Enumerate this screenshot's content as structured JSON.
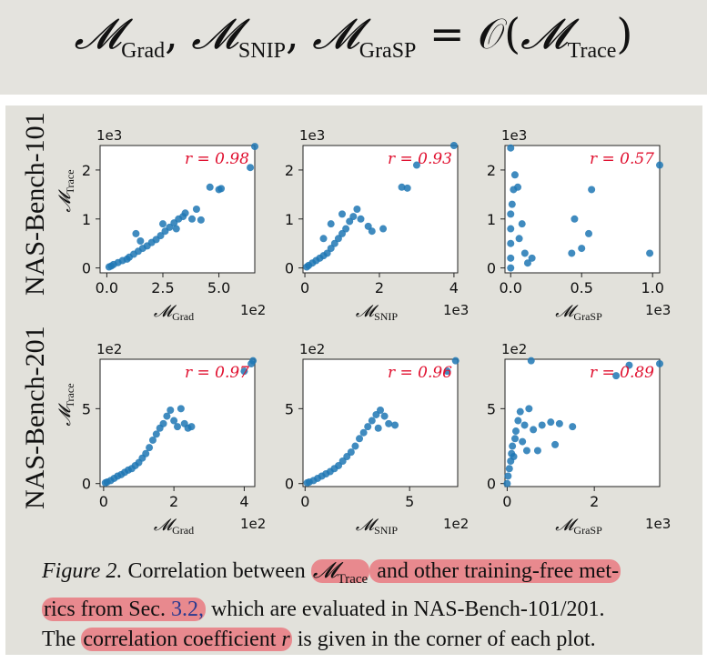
{
  "equation": {
    "lhs": [
      {
        "sym": "𝓜",
        "sub": "Grad"
      },
      {
        "sym": "𝓜",
        "sub": "SNIP"
      },
      {
        "sym": "𝓜",
        "sub": "GraSP"
      }
    ],
    "sep": ",",
    "rhs_prefix": "= 𝒪(",
    "rhs_sym": "𝓜",
    "rhs_sub": "Trace",
    "rhs_suffix": ")"
  },
  "row_labels": [
    "NAS-Bench-101",
    "NAS-Bench-201"
  ],
  "caption": {
    "fig": "Figure 2.",
    "t1": " Correlation between ",
    "m_sym": "𝓜",
    "m_sub": "Trace",
    "t2": " and other training-free met-",
    "t3": "rics from Sec. ",
    "ref": "3.2,",
    "t4": " which are evaluated in NAS-Bench-101/201.",
    "t5": "The ",
    "t6": "correlation coefficient",
    "r": "r",
    "t7": " is given in the corner of each plot."
  },
  "colors": {
    "point": "#1f77b4",
    "r_label": "#e0102f"
  },
  "chart_data": [
    {
      "type": "scatter",
      "row": 0,
      "col": 0,
      "xlabel_sym": "𝓜",
      "xlabel_sub": "Grad",
      "ylabel_sym": "𝓜",
      "ylabel_sub": "Trace",
      "x_mult": "1e2",
      "y_mult": "1e3",
      "xlim": [
        -0.3,
        6.6
      ],
      "ylim": [
        -0.1,
        2.5
      ],
      "xticks": [
        0.0,
        2.5,
        5.0
      ],
      "xticklabels": [
        "0.0",
        "2.5",
        "5.0"
      ],
      "yticks": [
        0,
        1,
        2
      ],
      "yticklabels": [
        "0",
        "1",
        "2"
      ],
      "r": "r = 0.98",
      "points": [
        [
          0.1,
          0.02
        ],
        [
          0.2,
          0.04
        ],
        [
          0.3,
          0.07
        ],
        [
          0.5,
          0.11
        ],
        [
          0.7,
          0.15
        ],
        [
          0.9,
          0.18
        ],
        [
          1.0,
          0.22
        ],
        [
          1.2,
          0.28
        ],
        [
          1.4,
          0.34
        ],
        [
          1.6,
          0.4
        ],
        [
          1.8,
          0.45
        ],
        [
          2.0,
          0.52
        ],
        [
          2.2,
          0.58
        ],
        [
          2.4,
          0.66
        ],
        [
          2.6,
          0.75
        ],
        [
          2.8,
          0.83
        ],
        [
          3.0,
          0.92
        ],
        [
          3.2,
          1.0
        ],
        [
          3.4,
          1.05
        ],
        [
          3.5,
          1.12
        ],
        [
          3.8,
          1.0
        ],
        [
          4.0,
          1.2
        ],
        [
          4.2,
          0.98
        ],
        [
          1.3,
          0.7
        ],
        [
          1.5,
          0.55
        ],
        [
          2.5,
          0.9
        ],
        [
          3.1,
          0.8
        ],
        [
          4.6,
          1.65
        ],
        [
          5.0,
          1.6
        ],
        [
          5.1,
          1.62
        ],
        [
          6.4,
          2.05
        ],
        [
          6.6,
          2.48
        ]
      ]
    },
    {
      "type": "scatter",
      "row": 0,
      "col": 1,
      "xlabel_sym": "𝓜",
      "xlabel_sub": "SNIP",
      "x_mult": "1e3",
      "y_mult": "1e3",
      "xlim": [
        -0.05,
        4.1
      ],
      "ylim": [
        -0.1,
        2.5
      ],
      "xticks": [
        0,
        2,
        4
      ],
      "xticklabels": [
        "0",
        "2",
        "4"
      ],
      "yticks": [
        0,
        1,
        2
      ],
      "yticklabels": [
        "0",
        "1",
        "2"
      ],
      "r": "r = 0.93",
      "points": [
        [
          0.05,
          0.02
        ],
        [
          0.1,
          0.05
        ],
        [
          0.2,
          0.1
        ],
        [
          0.3,
          0.15
        ],
        [
          0.4,
          0.2
        ],
        [
          0.5,
          0.25
        ],
        [
          0.6,
          0.3
        ],
        [
          0.7,
          0.4
        ],
        [
          0.8,
          0.5
        ],
        [
          0.9,
          0.6
        ],
        [
          1.0,
          0.7
        ],
        [
          1.1,
          0.8
        ],
        [
          1.2,
          0.95
        ],
        [
          1.3,
          1.05
        ],
        [
          1.4,
          1.2
        ],
        [
          1.5,
          1.0
        ],
        [
          1.7,
          0.85
        ],
        [
          1.8,
          0.75
        ],
        [
          2.1,
          0.8
        ],
        [
          0.5,
          0.6
        ],
        [
          0.7,
          0.9
        ],
        [
          1.0,
          1.1
        ],
        [
          2.6,
          1.65
        ],
        [
          2.75,
          1.63
        ],
        [
          3.0,
          2.1
        ],
        [
          4.0,
          2.5
        ]
      ]
    },
    {
      "type": "scatter",
      "row": 0,
      "col": 2,
      "xlabel_sym": "𝓜",
      "xlabel_sub": "GraSP",
      "x_mult": "1e3",
      "y_mult": "1e3",
      "xlim": [
        -0.04,
        1.05
      ],
      "ylim": [
        -0.1,
        2.5
      ],
      "xticks": [
        0.0,
        0.5,
        1.0
      ],
      "xticklabels": [
        "0.0",
        "0.5",
        "1.0"
      ],
      "yticks": [
        0,
        1,
        2
      ],
      "yticklabels": [
        "0",
        "1",
        "2"
      ],
      "r": "r = 0.57",
      "points": [
        [
          0.0,
          0.0
        ],
        [
          0.0,
          0.2
        ],
        [
          0.0,
          0.5
        ],
        [
          0.0,
          0.8
        ],
        [
          0.0,
          1.1
        ],
        [
          0.01,
          1.3
        ],
        [
          0.02,
          1.6
        ],
        [
          0.03,
          1.9
        ],
        [
          0.0,
          2.45
        ],
        [
          0.05,
          1.65
        ],
        [
          0.08,
          0.9
        ],
        [
          0.06,
          0.6
        ],
        [
          0.1,
          0.3
        ],
        [
          0.12,
          0.1
        ],
        [
          0.15,
          0.2
        ],
        [
          0.45,
          1.0
        ],
        [
          0.5,
          0.4
        ],
        [
          0.55,
          0.7
        ],
        [
          0.57,
          1.6
        ],
        [
          0.43,
          0.3
        ],
        [
          0.98,
          0.3
        ],
        [
          1.05,
          2.1
        ]
      ]
    },
    {
      "type": "scatter",
      "row": 1,
      "col": 0,
      "xlabel_sym": "𝓜",
      "xlabel_sub": "Grad",
      "ylabel_sym": "𝓜",
      "ylabel_sub": "Trace",
      "x_mult": "1e2",
      "y_mult": "1e2",
      "xlim": [
        -0.1,
        4.3
      ],
      "ylim": [
        -0.2,
        8.3
      ],
      "xticks": [
        0,
        2,
        4
      ],
      "xticklabels": [
        "0",
        "2",
        "4"
      ],
      "yticks": [
        0,
        5
      ],
      "yticklabels": [
        "0",
        "5"
      ],
      "r": "r = 0.97",
      "points": [
        [
          0.05,
          0.05
        ],
        [
          0.1,
          0.1
        ],
        [
          0.2,
          0.2
        ],
        [
          0.3,
          0.35
        ],
        [
          0.4,
          0.5
        ],
        [
          0.5,
          0.6
        ],
        [
          0.6,
          0.75
        ],
        [
          0.7,
          0.9
        ],
        [
          0.8,
          1.0
        ],
        [
          0.9,
          1.2
        ],
        [
          1.0,
          1.4
        ],
        [
          1.1,
          1.7
        ],
        [
          1.2,
          2.0
        ],
        [
          1.3,
          2.4
        ],
        [
          1.4,
          2.9
        ],
        [
          1.5,
          3.3
        ],
        [
          1.6,
          3.7
        ],
        [
          1.7,
          4.0
        ],
        [
          1.8,
          4.5
        ],
        [
          1.9,
          4.9
        ],
        [
          2.0,
          4.2
        ],
        [
          2.1,
          3.8
        ],
        [
          2.2,
          5.0
        ],
        [
          2.3,
          4.0
        ],
        [
          2.4,
          3.7
        ],
        [
          2.5,
          3.8
        ],
        [
          4.0,
          7.5
        ],
        [
          4.2,
          8.0
        ],
        [
          4.25,
          8.2
        ]
      ]
    },
    {
      "type": "scatter",
      "row": 1,
      "col": 1,
      "xlabel_sym": "𝓜",
      "xlabel_sub": "SNIP",
      "x_mult": "1e2",
      "y_mult": "1e2",
      "xlim": [
        -0.1,
        7.3
      ],
      "ylim": [
        -0.2,
        8.3
      ],
      "xticks": [
        0,
        5
      ],
      "xticklabels": [
        "0",
        "5"
      ],
      "yticks": [
        0,
        5
      ],
      "yticklabels": [
        "0",
        "5"
      ],
      "r": "r = 0.96",
      "points": [
        [
          0.1,
          0.05
        ],
        [
          0.2,
          0.1
        ],
        [
          0.4,
          0.2
        ],
        [
          0.6,
          0.35
        ],
        [
          0.8,
          0.5
        ],
        [
          1.0,
          0.65
        ],
        [
          1.2,
          0.8
        ],
        [
          1.4,
          1.0
        ],
        [
          1.6,
          1.2
        ],
        [
          1.8,
          1.5
        ],
        [
          2.0,
          1.8
        ],
        [
          2.2,
          2.1
        ],
        [
          2.4,
          2.5
        ],
        [
          2.6,
          3.0
        ],
        [
          2.8,
          3.4
        ],
        [
          3.0,
          3.8
        ],
        [
          3.2,
          4.2
        ],
        [
          3.4,
          4.6
        ],
        [
          3.6,
          4.9
        ],
        [
          3.8,
          4.5
        ],
        [
          4.0,
          4.0
        ],
        [
          4.3,
          3.9
        ],
        [
          3.5,
          3.7
        ],
        [
          6.8,
          7.5
        ],
        [
          7.2,
          8.2
        ]
      ]
    },
    {
      "type": "scatter",
      "row": 1,
      "col": 2,
      "xlabel_sym": "𝓜",
      "xlabel_sub": "GraSP",
      "x_mult": "1e3",
      "y_mult": "1e2",
      "xlim": [
        -0.05,
        3.5
      ],
      "ylim": [
        -0.2,
        8.3
      ],
      "xticks": [
        0,
        2
      ],
      "xticklabels": [
        "0",
        "2"
      ],
      "yticks": [
        0,
        5
      ],
      "yticklabels": [
        "0",
        "5"
      ],
      "r": "r = 0.89",
      "points": [
        [
          0.0,
          0.0
        ],
        [
          0.02,
          0.5
        ],
        [
          0.05,
          1.0
        ],
        [
          0.08,
          1.5
        ],
        [
          0.1,
          2.0
        ],
        [
          0.12,
          2.5
        ],
        [
          0.15,
          1.8
        ],
        [
          0.18,
          3.0
        ],
        [
          0.2,
          3.5
        ],
        [
          0.25,
          4.2
        ],
        [
          0.3,
          4.8
        ],
        [
          0.4,
          3.9
        ],
        [
          0.5,
          5.0
        ],
        [
          0.6,
          3.6
        ],
        [
          0.7,
          2.2
        ],
        [
          0.8,
          3.9
        ],
        [
          1.0,
          4.1
        ],
        [
          1.1,
          2.6
        ],
        [
          1.2,
          4.0
        ],
        [
          1.5,
          3.8
        ],
        [
          0.35,
          2.8
        ],
        [
          0.45,
          2.2
        ],
        [
          0.55,
          8.2
        ],
        [
          2.5,
          7.2
        ],
        [
          2.8,
          7.9
        ],
        [
          3.5,
          8.0
        ]
      ]
    }
  ]
}
